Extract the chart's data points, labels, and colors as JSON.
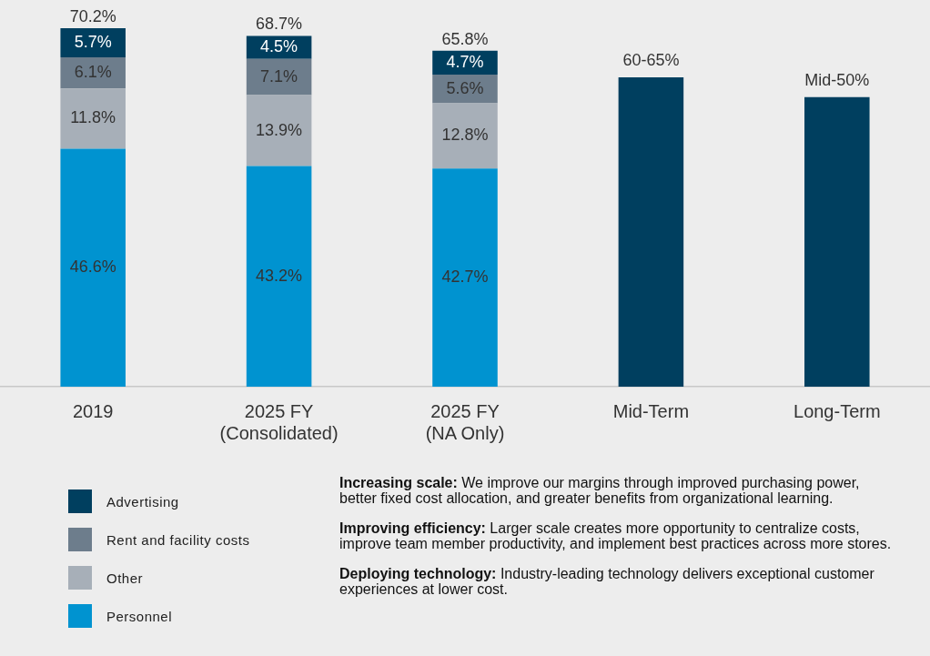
{
  "chart_data": {
    "type": "bar",
    "stacked": true,
    "categories": [
      "2019",
      "2025 FY\n(Consolidated)",
      "2025 FY\n(NA Only)",
      "Mid-Term",
      "Long-Term"
    ],
    "tick_labels": "x",
    "legend": "bottom left",
    "series": [
      {
        "name": "Personnel",
        "color": "#0093d0",
        "values": [
          46.6,
          43.2,
          42.7,
          null,
          null
        ],
        "value_labels": [
          "46.6%",
          "43.2%",
          "42.7%",
          null,
          null
        ]
      },
      {
        "name": "Other",
        "color": "#a7afb8",
        "values": [
          11.8,
          13.9,
          12.8,
          null,
          null
        ],
        "value_labels": [
          "11.8%",
          "13.9%",
          "12.8%",
          null,
          null
        ]
      },
      {
        "name": "Rent and facility costs",
        "color": "#6d7d8c",
        "values": [
          6.1,
          7.1,
          5.6,
          null,
          null
        ],
        "value_labels": [
          "6.1%",
          "7.1%",
          "5.6%",
          null,
          null
        ]
      },
      {
        "name": "Advertising",
        "color": "#003f5f",
        "values": [
          5.7,
          4.5,
          4.7,
          null,
          null
        ],
        "value_labels": [
          "5.7%",
          "4.5%",
          "4.7%",
          null,
          null
        ]
      },
      {
        "color": "#003f5f",
        "values": [
          null,
          null,
          null,
          60.6,
          56.7
        ]
      }
    ],
    "totals": [
      "70.2%",
      "68.7%",
      "65.8%",
      null,
      null
    ],
    "annotations": [
      {
        "text": "60-65%",
        "x": "Mid-Term",
        "y": 60.6
      },
      {
        "text": "Mid-50%",
        "x": "Long-Term",
        "y": 56.7
      },
      "Increasing scale: We improve our margins through improved purchasing power, better fixed cost allocation, and greater benefits from organizational learning.",
      "Improving efficiency: Larger scale creates more opportunity to centralize costs, improve team member productivity, and implement best practices across more stores.",
      "Deploying technology: Industry-leading technology delivers exceptional customer experiences at lower cost."
    ]
  }
}
